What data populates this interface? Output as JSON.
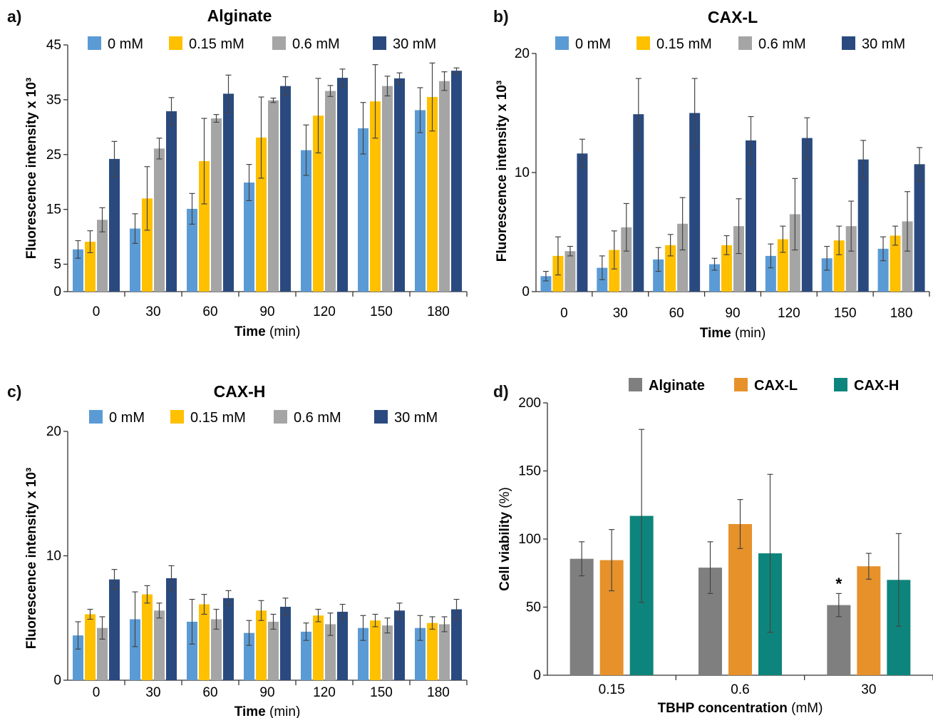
{
  "colors": {
    "0 mM": "#5b9bd5",
    "0.15 mM": "#ffc000",
    "0.6 mM": "#a5a5a5",
    "30 mM": "#2a4a7f",
    "Alginate": "#7f7f7f",
    "CAX-L": "#e6912a",
    "CAX-H": "#0e857c"
  },
  "panels": [
    {
      "letter": "a)"
    },
    {
      "letter": "b)"
    },
    {
      "letter": "c)"
    },
    {
      "letter": "d)"
    }
  ],
  "chart_data": [
    {
      "type": "bar",
      "title": "Alginate",
      "ylabel": "Fluorescence intensity x 10³",
      "xlabel_bold": "Time",
      "xlabel_unit": "(min)",
      "categories": [
        "0",
        "30",
        "60",
        "90",
        "120",
        "150",
        "180"
      ],
      "ylim": [
        0,
        45
      ],
      "yticks": [
        0,
        5,
        15,
        25,
        35,
        45
      ],
      "legend": "top",
      "series": [
        {
          "name": "0 mM",
          "values": [
            7.7,
            11.5,
            15.1,
            19.9,
            25.8,
            29.8,
            33.1
          ],
          "errors": [
            1.6,
            2.7,
            2.8,
            3.3,
            4.6,
            4.7,
            4.1
          ]
        },
        {
          "name": "0.15 mM",
          "values": [
            9.1,
            17.0,
            23.8,
            28.1,
            32.1,
            34.7,
            35.5
          ],
          "errors": [
            2.0,
            5.8,
            7.8,
            7.4,
            6.8,
            6.7,
            6.2
          ]
        },
        {
          "name": "0.6 mM",
          "values": [
            13.1,
            26.1,
            31.6,
            34.9,
            36.6,
            37.5,
            38.4
          ],
          "errors": [
            2.2,
            1.9,
            0.7,
            0.4,
            1.0,
            1.8,
            1.7
          ]
        },
        {
          "name": "30 mM",
          "values": [
            24.2,
            32.9,
            36.1,
            37.5,
            39.0,
            38.9,
            40.3
          ],
          "errors": [
            3.2,
            2.5,
            3.4,
            1.7,
            1.6,
            1.0,
            0.5
          ]
        }
      ]
    },
    {
      "type": "bar",
      "title": "CAX-L",
      "ylabel": "Fluorescence intensity x 10³",
      "xlabel_bold": "Time",
      "xlabel_unit": "(min)",
      "categories": [
        "0",
        "30",
        "60",
        "90",
        "120",
        "150",
        "180"
      ],
      "ylim": [
        0,
        20
      ],
      "yticks": [
        0,
        10,
        20
      ],
      "legend": "top",
      "series": [
        {
          "name": "0 mM",
          "values": [
            1.3,
            2.0,
            2.7,
            2.3,
            3.0,
            2.8,
            3.6
          ],
          "errors": [
            0.4,
            1.0,
            1.0,
            0.5,
            1.0,
            1.0,
            1.0
          ]
        },
        {
          "name": "0.15 mM",
          "values": [
            3.0,
            3.5,
            3.9,
            3.9,
            4.4,
            4.3,
            4.7
          ],
          "errors": [
            1.6,
            1.6,
            0.9,
            0.8,
            1.1,
            1.2,
            0.8
          ]
        },
        {
          "name": "0.6 mM",
          "values": [
            3.4,
            5.4,
            5.7,
            5.5,
            6.5,
            5.5,
            5.9
          ],
          "errors": [
            0.4,
            2.0,
            2.2,
            2.3,
            3.0,
            2.1,
            2.5
          ]
        },
        {
          "name": "30 mM",
          "values": [
            11.6,
            14.9,
            15.0,
            12.7,
            12.9,
            11.1,
            10.7
          ],
          "errors": [
            1.2,
            3.0,
            2.9,
            2.0,
            1.7,
            1.6,
            1.4
          ]
        }
      ]
    },
    {
      "type": "bar",
      "title": "CAX-H",
      "ylabel": "Fluorescence intensity x 10³",
      "xlabel_bold": "Time",
      "xlabel_unit": "(min)",
      "categories": [
        "0",
        "30",
        "60",
        "90",
        "120",
        "150",
        "180"
      ],
      "ylim": [
        0,
        20
      ],
      "yticks": [
        0,
        10,
        20
      ],
      "legend": "top",
      "series": [
        {
          "name": "0 mM",
          "values": [
            3.6,
            4.9,
            4.7,
            3.8,
            3.9,
            4.2,
            4.2
          ],
          "errors": [
            1.1,
            2.2,
            1.8,
            1.0,
            0.7,
            1.0,
            1.0
          ]
        },
        {
          "name": "0.15 mM",
          "values": [
            5.3,
            6.9,
            6.1,
            5.6,
            5.2,
            4.8,
            4.6
          ],
          "errors": [
            0.4,
            0.7,
            0.8,
            0.8,
            0.5,
            0.5,
            0.5
          ]
        },
        {
          "name": "0.6 mM",
          "values": [
            4.2,
            5.6,
            4.9,
            4.7,
            4.5,
            4.4,
            4.5
          ],
          "errors": [
            0.9,
            0.6,
            0.8,
            0.6,
            0.9,
            0.6,
            0.6
          ]
        },
        {
          "name": "30 mM",
          "values": [
            8.1,
            8.2,
            6.6,
            5.9,
            5.5,
            5.6,
            5.7
          ],
          "errors": [
            0.8,
            1.0,
            0.6,
            0.7,
            0.6,
            0.6,
            0.8
          ]
        }
      ]
    },
    {
      "type": "bar",
      "title": "",
      "ylabel_bold": "Cell viability",
      "ylabel_unit": "(%)",
      "xlabel_bold": "TBHP concentration",
      "xlabel_unit": "(mM)",
      "categories": [
        "0.15",
        "0.6",
        "30"
      ],
      "ylim": [
        0,
        200
      ],
      "yticks": [
        0,
        50,
        100,
        150,
        200
      ],
      "legend": "top",
      "annotations": [
        {
          "text": "*",
          "category": "30",
          "series": "Alginate"
        }
      ],
      "series": [
        {
          "name": "Alginate",
          "values": [
            85.5,
            79.0,
            51.5
          ],
          "errors": [
            12.5,
            19.0,
            8.5
          ]
        },
        {
          "name": "CAX-L",
          "values": [
            84.5,
            111.0,
            80.0
          ],
          "errors": [
            22.5,
            18.0,
            9.5
          ]
        },
        {
          "name": "CAX-H",
          "values": [
            117.0,
            89.5,
            70.0
          ],
          "errors": [
            63.5,
            58.0,
            34.0
          ]
        }
      ]
    }
  ]
}
